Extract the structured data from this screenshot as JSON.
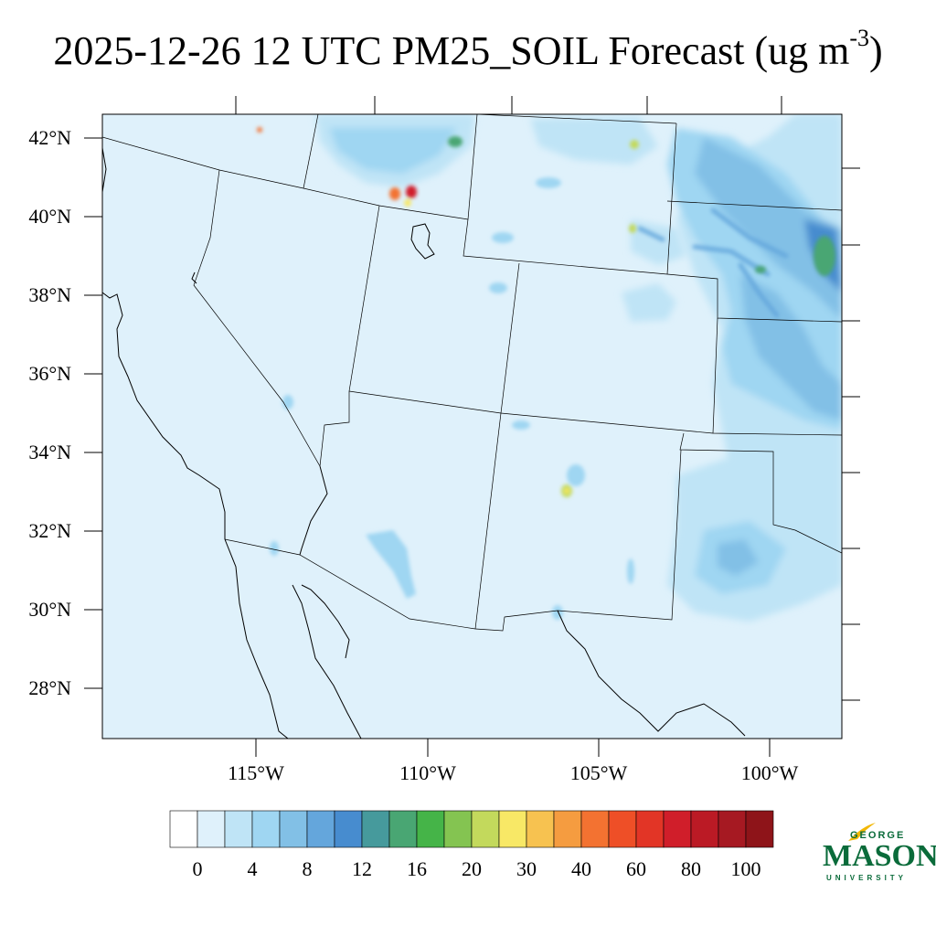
{
  "title": {
    "text": "2025-12-26 12 UTC PM25_SOIL Forecast (ug m",
    "exponent": "-3",
    "close": ")"
  },
  "map": {
    "lat_labels": [
      "42°N",
      "40°N",
      "38°N",
      "36°N",
      "34°N",
      "32°N",
      "30°N",
      "28°N"
    ],
    "lon_labels": [
      "115°W",
      "110°W",
      "105°W",
      "100°W"
    ],
    "base_fill_color": "#dff1fb",
    "boundary_color": "#000000"
  },
  "colorbar": {
    "colors": [
      "#ffffff",
      "#dff1fb",
      "#bfe4f6",
      "#9fd6f2",
      "#82c0e6",
      "#64a6dc",
      "#478ccf",
      "#469a9c",
      "#49a673",
      "#45b448",
      "#84c451",
      "#c3d95c",
      "#f8e866",
      "#f7c250",
      "#f59c40",
      "#f37231",
      "#ee4f27",
      "#e23526",
      "#d01e2a",
      "#bb1a25",
      "#a61922",
      "#8e1419"
    ],
    "labels": [
      "0",
      "4",
      "8",
      "12",
      "16",
      "20",
      "30",
      "40",
      "60",
      "80",
      "100"
    ]
  },
  "logo": {
    "top_text": "GEORGE",
    "main_text": "MASON",
    "bottom_text": "UNIVERSITY",
    "color": "#0a6b3a",
    "accent_color": "#f2b705"
  }
}
